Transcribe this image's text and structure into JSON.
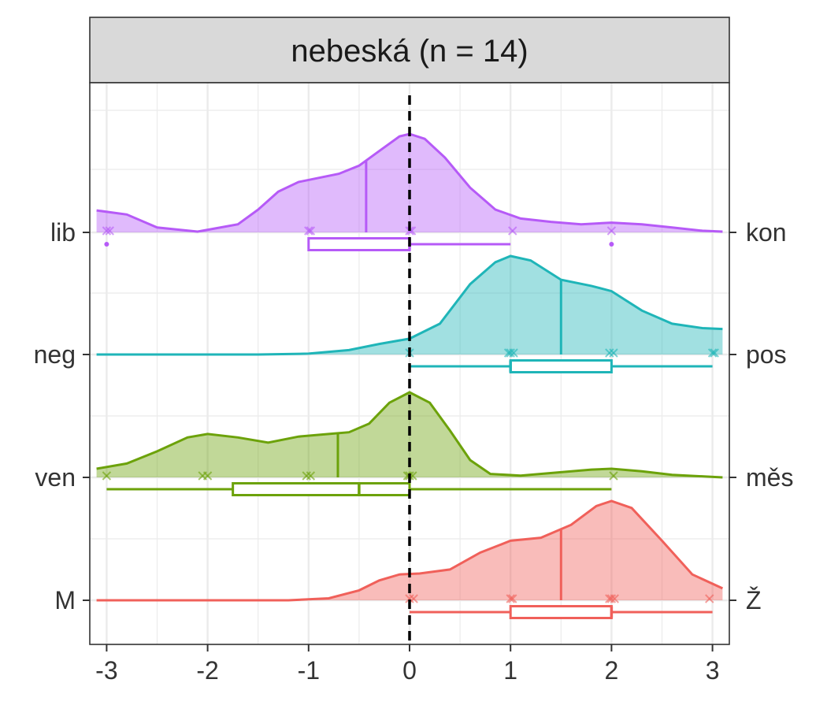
{
  "chart_data": {
    "type": "ridgeline",
    "title": "nebeská (n = 14)",
    "xlabel": "",
    "ylabel": "",
    "xlim": [
      -3.1,
      3.1
    ],
    "x_ticks": [
      "-3",
      "-2",
      "-1",
      "0",
      "1",
      "2",
      "3"
    ],
    "reference_line_x": 0,
    "grid": true,
    "legend": "none",
    "rows": [
      {
        "left_label": "lib",
        "right_label": "kon",
        "color": "#B65AF7",
        "density": [
          [
            -3.1,
            0.27
          ],
          [
            -2.8,
            0.22
          ],
          [
            -2.5,
            0.06
          ],
          [
            -2.1,
            0.01
          ],
          [
            -1.7,
            0.1
          ],
          [
            -1.5,
            0.28
          ],
          [
            -1.3,
            0.5
          ],
          [
            -1.1,
            0.62
          ],
          [
            -0.9,
            0.67
          ],
          [
            -0.7,
            0.72
          ],
          [
            -0.5,
            0.82
          ],
          [
            -0.3,
            1.0
          ],
          [
            -0.1,
            1.18
          ],
          [
            0.0,
            1.21
          ],
          [
            0.15,
            1.15
          ],
          [
            0.35,
            0.92
          ],
          [
            0.6,
            0.55
          ],
          [
            0.85,
            0.28
          ],
          [
            1.1,
            0.17
          ],
          [
            1.4,
            0.13
          ],
          [
            1.7,
            0.1
          ],
          [
            2.0,
            0.12
          ],
          [
            2.3,
            0.1
          ],
          [
            2.6,
            0.06
          ],
          [
            2.9,
            0.02
          ],
          [
            3.1,
            0.01
          ]
        ],
        "mean": -0.43,
        "points": [
          -3.0,
          -2.97,
          -1.0,
          -0.98,
          0.0,
          0.02,
          1.02,
          2.0
        ],
        "box": {
          "min": -1,
          "q1": -1,
          "median": 0,
          "q3": 0,
          "max": 1,
          "outliers": [
            -3,
            2
          ]
        }
      },
      {
        "left_label": "neg",
        "right_label": "pos",
        "color": "#1FB5B8",
        "density": [
          [
            -3.1,
            0.0
          ],
          [
            -1.5,
            0.0
          ],
          [
            -1.0,
            0.01
          ],
          [
            -0.6,
            0.05
          ],
          [
            -0.3,
            0.12
          ],
          [
            0.0,
            0.18
          ],
          [
            0.3,
            0.35
          ],
          [
            0.6,
            0.8
          ],
          [
            0.85,
            1.05
          ],
          [
            1.0,
            1.12
          ],
          [
            1.2,
            1.07
          ],
          [
            1.5,
            0.85
          ],
          [
            1.8,
            0.78
          ],
          [
            2.0,
            0.72
          ],
          [
            2.3,
            0.5
          ],
          [
            2.6,
            0.35
          ],
          [
            2.9,
            0.3
          ],
          [
            3.1,
            0.29
          ]
        ],
        "mean": 1.5,
        "points": [
          0.0,
          0.98,
          1.0,
          1.03,
          1.98,
          2.02,
          3.0,
          3.02
        ],
        "box": {
          "min": 0,
          "q1": 1,
          "median": 1,
          "q3": 2,
          "max": 3,
          "outliers": []
        }
      },
      {
        "left_label": "ven",
        "right_label": "měs",
        "color": "#6CA20A",
        "density": [
          [
            -3.1,
            0.1
          ],
          [
            -2.8,
            0.16
          ],
          [
            -2.5,
            0.3
          ],
          [
            -2.2,
            0.46
          ],
          [
            -2.0,
            0.5
          ],
          [
            -1.7,
            0.46
          ],
          [
            -1.4,
            0.4
          ],
          [
            -1.1,
            0.47
          ],
          [
            -0.8,
            0.5
          ],
          [
            -0.6,
            0.52
          ],
          [
            -0.4,
            0.62
          ],
          [
            -0.2,
            0.86
          ],
          [
            0.0,
            0.98
          ],
          [
            0.2,
            0.86
          ],
          [
            0.4,
            0.54
          ],
          [
            0.6,
            0.2
          ],
          [
            0.8,
            0.04
          ],
          [
            1.1,
            0.02
          ],
          [
            1.5,
            0.06
          ],
          [
            1.8,
            0.09
          ],
          [
            2.0,
            0.1
          ],
          [
            2.3,
            0.07
          ],
          [
            2.6,
            0.03
          ],
          [
            3.1,
            0.0
          ]
        ],
        "mean": -0.71,
        "points": [
          -3.0,
          -2.05,
          -2.0,
          -1.02,
          -0.98,
          -0.02,
          0.0,
          0.03,
          2.02
        ],
        "box": {
          "min": -3,
          "q1": -1.75,
          "median": -0.5,
          "q3": 0,
          "max": 2,
          "outliers": []
        }
      },
      {
        "left_label": "M",
        "right_label": "Ž",
        "color": "#F0605A",
        "density": [
          [
            -3.1,
            0.0
          ],
          [
            -1.2,
            0.0
          ],
          [
            -0.8,
            0.02
          ],
          [
            -0.5,
            0.1
          ],
          [
            -0.3,
            0.2
          ],
          [
            -0.1,
            0.26
          ],
          [
            0.1,
            0.27
          ],
          [
            0.4,
            0.31
          ],
          [
            0.7,
            0.48
          ],
          [
            1.0,
            0.6
          ],
          [
            1.3,
            0.63
          ],
          [
            1.6,
            0.76
          ],
          [
            1.85,
            0.95
          ],
          [
            2.0,
            1.0
          ],
          [
            2.2,
            0.93
          ],
          [
            2.5,
            0.6
          ],
          [
            2.8,
            0.26
          ],
          [
            3.1,
            0.12
          ]
        ],
        "mean": 1.5,
        "points": [
          0.0,
          0.04,
          1.0,
          1.02,
          1.98,
          2.0,
          2.03,
          2.97
        ],
        "box": {
          "min": 0,
          "q1": 1,
          "median": 2,
          "q3": 2,
          "max": 3,
          "outliers": []
        }
      }
    ]
  }
}
